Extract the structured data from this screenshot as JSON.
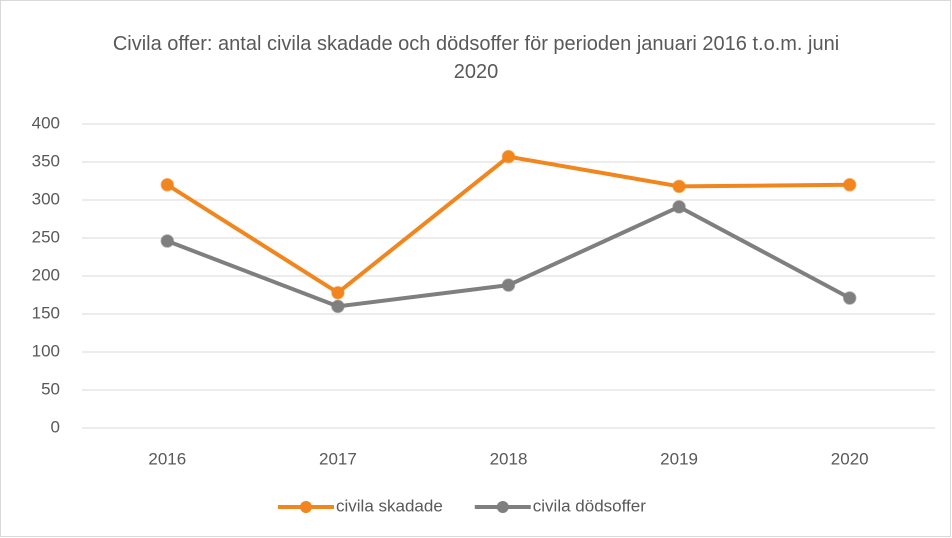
{
  "chart_data": {
    "type": "line",
    "title": "Civila offer: antal civila skadade och dödsoffer för perioden januari 2016 t.o.m. juni 2020",
    "categories": [
      "2016",
      "2017",
      "2018",
      "2019",
      "2020"
    ],
    "series": [
      {
        "name": "civila skadade",
        "color": "#f0861d",
        "values": [
          320,
          178,
          357,
          318,
          320
        ]
      },
      {
        "name": "civila dödsoffer",
        "color": "#7f7f7f",
        "values": [
          246,
          160,
          188,
          291,
          171
        ]
      }
    ],
    "ylim": [
      0,
      400
    ],
    "yticks": [
      0,
      50,
      100,
      150,
      200,
      250,
      300,
      350,
      400
    ],
    "grid": true,
    "legend": "bottom"
  }
}
